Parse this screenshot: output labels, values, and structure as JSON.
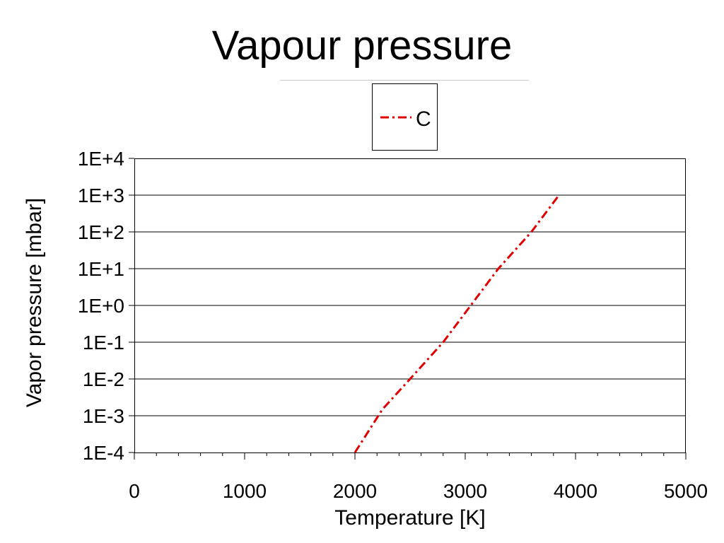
{
  "slide": {
    "title": "Vapour pressure"
  },
  "chart_data": {
    "type": "line",
    "xlabel": "Temperature [K]",
    "ylabel": "Vapor pressure [mbar]",
    "x_scale": "linear",
    "y_scale": "log",
    "xlim": [
      0,
      5000
    ],
    "ylim": [
      0.0001,
      10000
    ],
    "x_ticks": [
      "0",
      "1000",
      "2000",
      "3000",
      "4000",
      "5000"
    ],
    "y_ticks": [
      "1E-4",
      "1E-3",
      "1E-2",
      "1E-1",
      "1E+0",
      "1E+1",
      "1E+2",
      "1E+3",
      "1E+4"
    ],
    "grid": "horizontal",
    "legend_position": "top-center",
    "series": [
      {
        "name": "C",
        "color": "#e00000",
        "line_style": "dash-dot",
        "x": [
          2000,
          2250,
          2500,
          2800,
          3050,
          3300,
          3600,
          3850
        ],
        "y": [
          0.0001,
          0.0015,
          0.01,
          0.1,
          1,
          10,
          100,
          1000
        ]
      }
    ]
  }
}
